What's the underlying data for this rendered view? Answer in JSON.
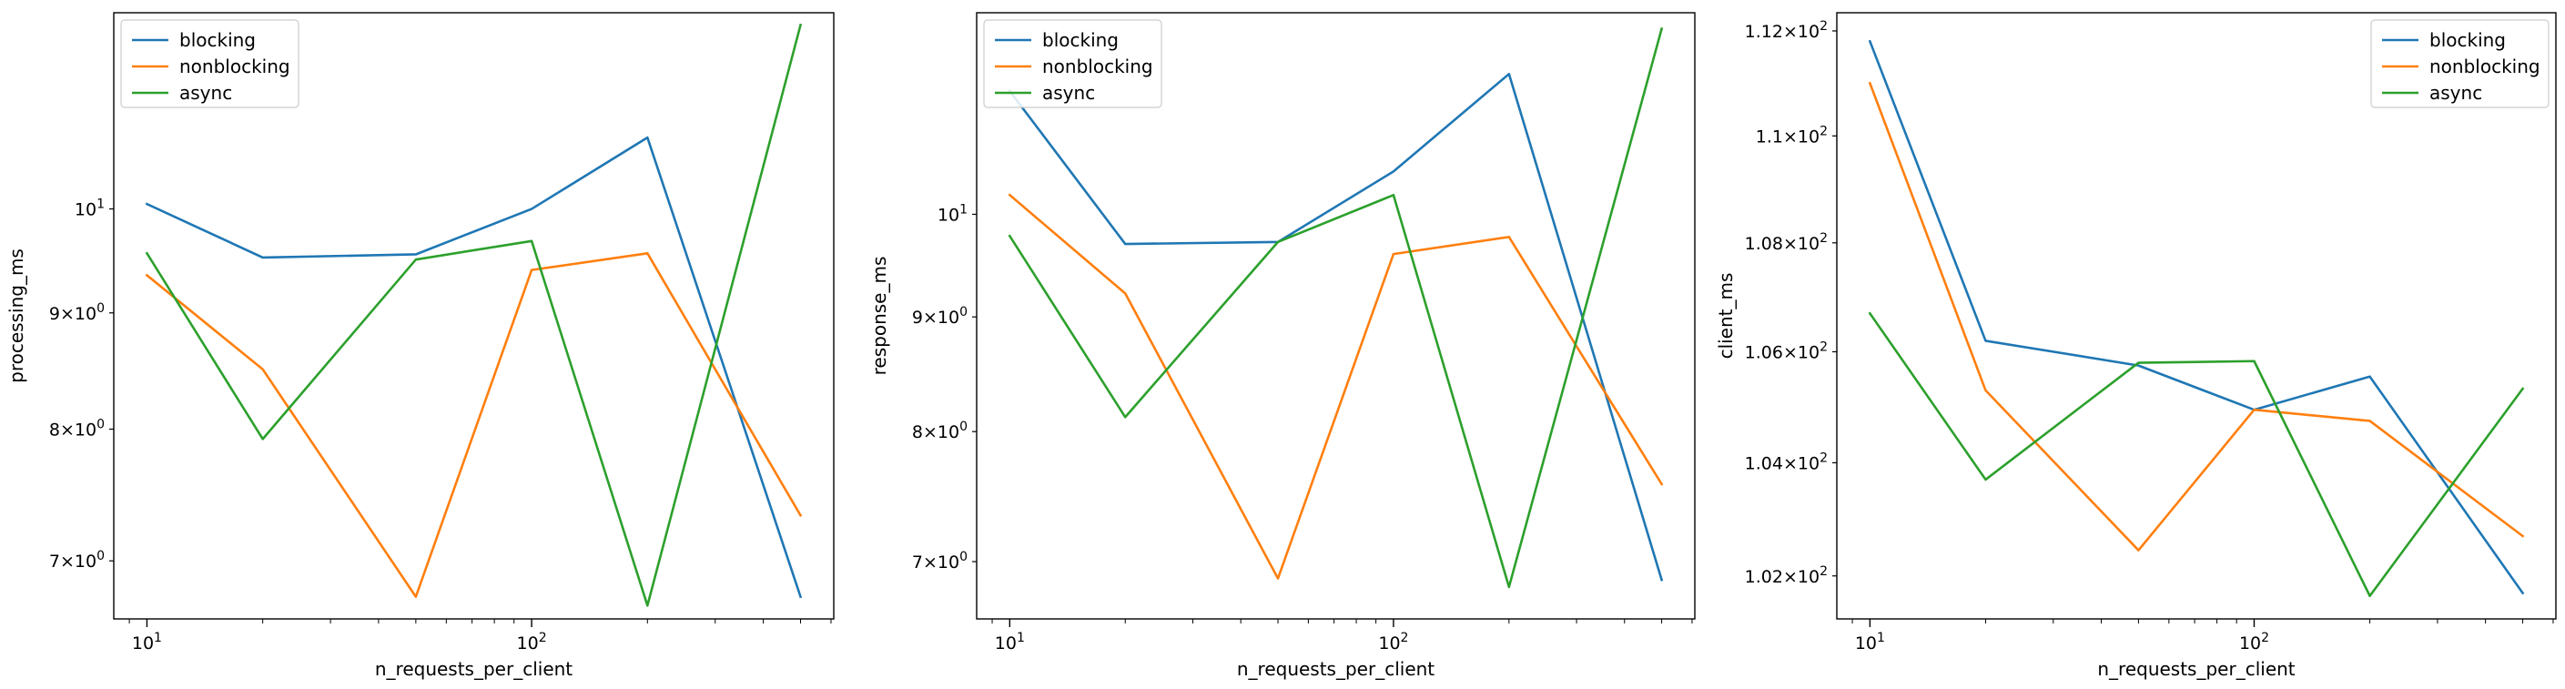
{
  "chart_data": [
    {
      "type": "line",
      "xscale": "log",
      "yscale": "log",
      "xlabel": "n_requests_per_client",
      "ylabel": "processing_ms",
      "xlim": [
        8.2,
        610
      ],
      "ylim": [
        6.6,
        12.2
      ],
      "x_ticks": [
        {
          "value": 10,
          "label": "10^1"
        },
        {
          "value": 100,
          "label": "10^2"
        }
      ],
      "y_ticks": [
        {
          "value": 10,
          "label": "10^1"
        },
        {
          "value": 9,
          "label": "9×10^0"
        },
        {
          "value": 8,
          "label": "8×10^0"
        },
        {
          "value": 7,
          "label": "7×10^0"
        }
      ],
      "legend": {
        "loc": "upper left"
      },
      "x": [
        10,
        20,
        50,
        100,
        200,
        500
      ],
      "series": [
        {
          "name": "blocking",
          "color": "#1f77b4",
          "values": [
            10.05,
            9.52,
            9.55,
            10.0,
            10.75,
            6.75
          ]
        },
        {
          "name": "nonblocking",
          "color": "#ff7f0e",
          "values": [
            9.35,
            8.5,
            6.75,
            9.4,
            9.56,
            7.33
          ]
        },
        {
          "name": "async",
          "color": "#2ca02c",
          "values": [
            9.56,
            7.92,
            9.5,
            9.68,
            6.69,
            12.05
          ]
        }
      ]
    },
    {
      "type": "line",
      "xscale": "log",
      "yscale": "log",
      "xlabel": "n_requests_per_client",
      "ylabel": "response_ms",
      "xlim": [
        8.2,
        610
      ],
      "ylim": [
        6.6,
        12.3
      ],
      "x_ticks": [
        {
          "value": 10,
          "label": "10^1"
        },
        {
          "value": 100,
          "label": "10^2"
        }
      ],
      "y_ticks": [
        {
          "value": 10,
          "label": "10^1"
        },
        {
          "value": 9,
          "label": "9×10^0"
        },
        {
          "value": 8,
          "label": "8×10^0"
        },
        {
          "value": 7,
          "label": "7×10^0"
        }
      ],
      "legend": {
        "loc": "upper left"
      },
      "x": [
        10,
        20,
        50,
        100,
        200,
        500
      ],
      "series": [
        {
          "name": "blocking",
          "color": "#1f77b4",
          "values": [
            11.35,
            9.7,
            9.72,
            10.45,
            11.55,
            6.87
          ]
        },
        {
          "name": "nonblocking",
          "color": "#ff7f0e",
          "values": [
            10.2,
            9.22,
            6.88,
            9.6,
            9.77,
            7.58
          ]
        },
        {
          "name": "async",
          "color": "#2ca02c",
          "values": [
            9.78,
            8.12,
            9.72,
            10.2,
            6.82,
            12.1
          ]
        }
      ]
    },
    {
      "type": "line",
      "xscale": "log",
      "yscale": "log",
      "xlabel": "n_requests_per_client",
      "ylabel": "client_ms",
      "xlim": [
        8.2,
        610
      ],
      "ylim": [
        101.25,
        112.35
      ],
      "x_ticks": [
        {
          "value": 10,
          "label": "10^1"
        },
        {
          "value": 100,
          "label": "10^2"
        }
      ],
      "y_ticks": [
        {
          "value": 112,
          "label": "1.12×10^2"
        },
        {
          "value": 110,
          "label": "1.1×10^2"
        },
        {
          "value": 108,
          "label": "1.08×10^2"
        },
        {
          "value": 106,
          "label": "1.06×10^2"
        },
        {
          "value": 104,
          "label": "1.04×10^2"
        },
        {
          "value": 102,
          "label": "1.02×10^2"
        }
      ],
      "legend": {
        "loc": "upper right"
      },
      "x": [
        10,
        20,
        50,
        100,
        200,
        500
      ],
      "series": [
        {
          "name": "blocking",
          "color": "#1f77b4",
          "values": [
            111.8,
            106.2,
            105.75,
            104.95,
            105.55,
            101.7
          ]
        },
        {
          "name": "nonblocking",
          "color": "#ff7f0e",
          "values": [
            111.0,
            105.3,
            102.45,
            104.95,
            104.75,
            102.7
          ]
        },
        {
          "name": "async",
          "color": "#2ca02c",
          "values": [
            106.7,
            103.7,
            105.8,
            105.83,
            101.65,
            105.33
          ]
        }
      ]
    }
  ]
}
